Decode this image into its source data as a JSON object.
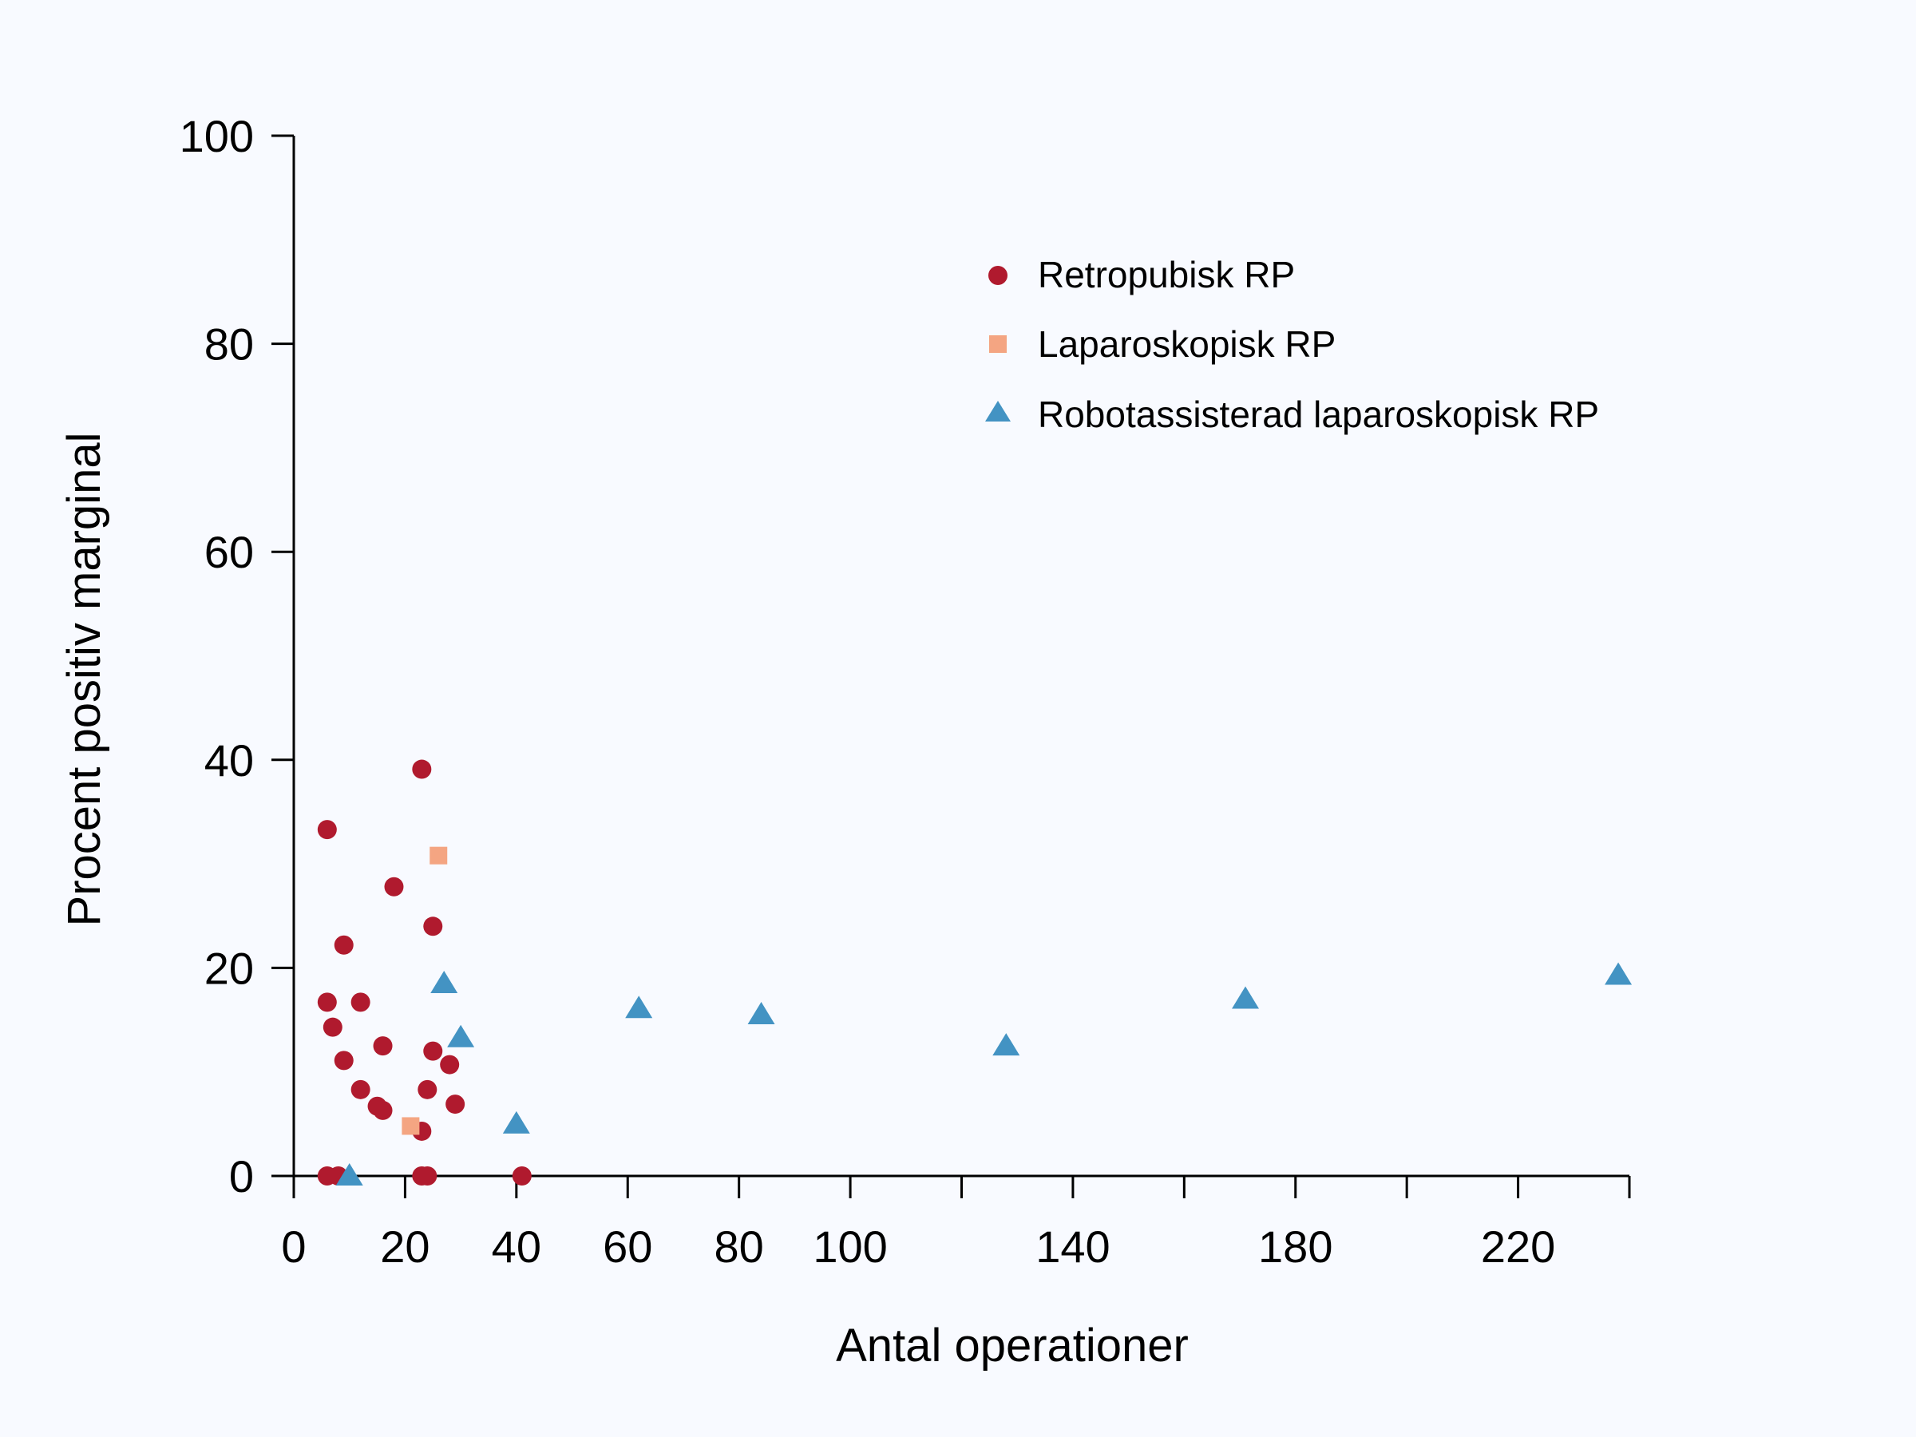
{
  "chart_data": {
    "type": "scatter",
    "xlabel": "Antal operationer",
    "ylabel": "Procent positiv marginal",
    "xlim": [
      0,
      240
    ],
    "ylim": [
      0,
      100
    ],
    "x_ticks": [
      0,
      20,
      40,
      60,
      80,
      100,
      120,
      140,
      160,
      180,
      200,
      220,
      240
    ],
    "x_tick_labels": [
      "0",
      "20",
      "40",
      "60",
      "80",
      "100",
      "",
      "140",
      "",
      "180",
      "",
      "220",
      ""
    ],
    "y_ticks": [
      0,
      20,
      40,
      60,
      80,
      100
    ],
    "y_tick_labels": [
      "0",
      "20",
      "40",
      "60",
      "80",
      "100"
    ],
    "grid": false,
    "legend_position": "top-right",
    "series": [
      {
        "name": "Retropubisk RP",
        "marker": "circle",
        "color": "#b01a2e",
        "points": [
          [
            6,
            33.3
          ],
          [
            6,
            16.7
          ],
          [
            6,
            0
          ],
          [
            7,
            14.3
          ],
          [
            8,
            0
          ],
          [
            9,
            22.2
          ],
          [
            9,
            11.1
          ],
          [
            12,
            16.7
          ],
          [
            12,
            8.3
          ],
          [
            15,
            6.7
          ],
          [
            16,
            6.3
          ],
          [
            16,
            12.5
          ],
          [
            18,
            27.8
          ],
          [
            23,
            39.1
          ],
          [
            23,
            4.3
          ],
          [
            23,
            0
          ],
          [
            24,
            8.3
          ],
          [
            24,
            0
          ],
          [
            25,
            24.0
          ],
          [
            25,
            12.0
          ],
          [
            28,
            10.7
          ],
          [
            29,
            6.9
          ],
          [
            41,
            0
          ]
        ]
      },
      {
        "name": "Laparoskopisk RP",
        "marker": "square",
        "color": "#f4a582",
        "points": [
          [
            26,
            30.8
          ],
          [
            21,
            4.8
          ]
        ]
      },
      {
        "name": "Robotassisterad laparoskopisk RP",
        "marker": "triangle",
        "color": "#4393c3",
        "points": [
          [
            10,
            0
          ],
          [
            27,
            18.5
          ],
          [
            30,
            13.3
          ],
          [
            40,
            5.0
          ],
          [
            62,
            16.1
          ],
          [
            84,
            15.5
          ],
          [
            128,
            12.5
          ],
          [
            171,
            17.0
          ],
          [
            238,
            19.3
          ]
        ]
      }
    ]
  }
}
